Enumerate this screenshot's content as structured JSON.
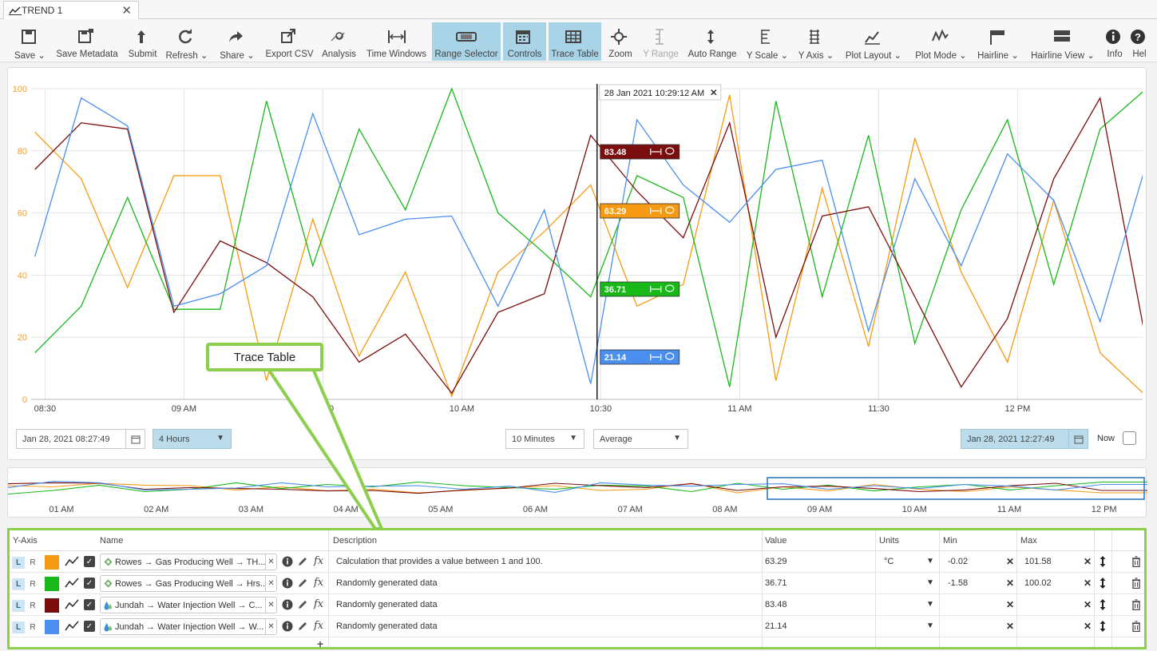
{
  "tab": {
    "title": "TREND 1",
    "close": "✕"
  },
  "toolbar": [
    {
      "id": "save",
      "label": "Save",
      "dropdown": true,
      "icon": "save-icon"
    },
    {
      "id": "save-metadata",
      "label": "Save Metadata",
      "icon": "save-metadata-icon"
    },
    {
      "id": "submit",
      "label": "Submit",
      "icon": "submit-icon"
    },
    {
      "id": "refresh",
      "label": "Refresh",
      "dropdown": true,
      "icon": "refresh-icon"
    },
    {
      "id": "share",
      "label": "Share",
      "dropdown": true,
      "icon": "share-icon"
    },
    {
      "id": "export-csv",
      "label": "Export CSV",
      "icon": "export-icon"
    },
    {
      "id": "analysis",
      "label": "Analysis",
      "icon": "analysis-icon"
    },
    {
      "id": "time-windows",
      "label": "Time Windows",
      "icon": "time-windows-icon"
    },
    {
      "id": "range-selector",
      "label": "Range Selector",
      "active": true,
      "icon": "range-selector-icon"
    },
    {
      "id": "controls",
      "label": "Controls",
      "active": true,
      "icon": "calendar-icon"
    },
    {
      "id": "trace-table",
      "label": "Trace Table",
      "active": true,
      "icon": "table-icon"
    },
    {
      "id": "zoom",
      "label": "Zoom",
      "icon": "zoom-icon"
    },
    {
      "id": "y-range",
      "label": "Y Range",
      "disabled": true,
      "icon": "y-range-icon"
    },
    {
      "id": "auto-range",
      "label": "Auto Range",
      "icon": "auto-range-icon"
    },
    {
      "id": "y-scale",
      "label": "Y Scale",
      "dropdown": true,
      "icon": "y-scale-icon"
    },
    {
      "id": "y-axis",
      "label": "Y Axis",
      "dropdown": true,
      "icon": "y-axis-icon"
    },
    {
      "id": "plot-layout",
      "label": "Plot Layout",
      "dropdown": true,
      "icon": "plot-layout-icon"
    },
    {
      "id": "plot-mode",
      "label": "Plot Mode",
      "dropdown": true,
      "icon": "plot-mode-icon"
    },
    {
      "id": "hairline",
      "label": "Hairline",
      "dropdown": true,
      "icon": "hairline-icon"
    },
    {
      "id": "hairline-view",
      "label": "Hairline View",
      "dropdown": true,
      "icon": "hairline-view-icon"
    },
    {
      "id": "info",
      "label": "Info",
      "icon": "info-icon"
    },
    {
      "id": "help",
      "label": "Hel",
      "icon": "help-icon"
    }
  ],
  "colors": {
    "orange": "#f59a12",
    "green": "#18b818",
    "maroon": "#7a0d0d",
    "blue": "#4a8ef0",
    "active": "#a9d3e6",
    "callout_border": "#8ccf4d"
  },
  "chart_data": {
    "type": "line",
    "ylim": [
      0,
      100
    ],
    "yticks": [
      "0",
      "20",
      "40",
      "60",
      "80",
      "100"
    ],
    "xticks": [
      "08:30",
      "09 AM",
      "09:30",
      "10 AM",
      "10:30",
      "11 AM",
      "11:30",
      "12 PM"
    ],
    "x_range": [
      "2021-01-28 08:27:49",
      "2021-01-28 12:27:49"
    ],
    "hairline_time": "28 Jan 2021 10:29:12 AM",
    "hairline_close": "✕",
    "x": [
      "08:27:49",
      "08:37:49",
      "08:47:49",
      "08:57:49",
      "09:07:49",
      "09:17:49",
      "09:27:49",
      "09:37:49",
      "09:47:49",
      "09:57:49",
      "10:07:49",
      "10:17:49",
      "10:27:49",
      "10:37:49",
      "10:47:49",
      "10:57:49",
      "11:07:49",
      "11:17:49",
      "11:27:49",
      "11:37:49",
      "11:47:49",
      "11:57:49",
      "12:07:49",
      "12:17:49",
      "12:27:49",
      "12:37:49"
    ],
    "series": [
      {
        "name": "Rowes → Gas Producing Well → TH...",
        "color": "#f59a12",
        "hair_value": "63.29",
        "values": [
          86,
          71,
          36,
          72,
          72,
          6,
          58,
          14,
          41,
          1,
          41,
          54,
          69,
          30,
          37,
          98,
          6,
          68,
          17,
          84,
          41,
          12,
          64,
          15,
          1,
          1
        ]
      },
      {
        "name": "Rowes → Gas Producing Well → Hrs...",
        "color": "#18b818",
        "hair_value": "36.71",
        "values": [
          15,
          30,
          65,
          29,
          29,
          96,
          43,
          87,
          61,
          100,
          60,
          47,
          33,
          72,
          65,
          4,
          96,
          33,
          85,
          18,
          61,
          90,
          37,
          87,
          100,
          100
        ]
      },
      {
        "name": "Jundah → Water Injection Well → C...",
        "color": "#7a0d0d",
        "hair_value": "83.48",
        "values": [
          74,
          89,
          87,
          28,
          51,
          44,
          33,
          12,
          21,
          2,
          28,
          34,
          85,
          67,
          52,
          89,
          20,
          59,
          62,
          33,
          4,
          26,
          71,
          97,
          18,
          18
        ]
      },
      {
        "name": "Jundah → Water Injection Well → W...",
        "color": "#4a8ef0",
        "hair_value": "21.14",
        "values": [
          46,
          97,
          88,
          30,
          34,
          43,
          92,
          53,
          58,
          59,
          30,
          61,
          5,
          90,
          69,
          57,
          74,
          77,
          22,
          71,
          43,
          79,
          64,
          25,
          76,
          76
        ]
      }
    ]
  },
  "overview_ticks": [
    "01 AM",
    "02 AM",
    "03 AM",
    "04 AM",
    "05 AM",
    "06 AM",
    "07 AM",
    "08 AM",
    "09 AM",
    "10 AM",
    "11 AM",
    "12 PM"
  ],
  "controls": {
    "start": "Jan 28, 2021 08:27:49",
    "span": "4 Hours",
    "interval": "10 Minutes",
    "aggregate": "Average",
    "end": "Jan 28, 2021 12:27:49",
    "now_label": "Now"
  },
  "callout": {
    "text": "Trace Table"
  },
  "table": {
    "headers": {
      "yaxis": "Y-Axis",
      "name": "Name",
      "description": "Description",
      "value": "Value",
      "units": "Units",
      "min": "Min",
      "max": "Max"
    },
    "rows": [
      {
        "l": "L",
        "r": "R",
        "color": "#f59a12",
        "name": "Rowes → Gas Producing Well → TH...",
        "description": "Calculation that provides a value between 1 and 100.",
        "value": "63.29",
        "units": "°C",
        "min": "-0.02",
        "max": "101.58",
        "asset": "gas"
      },
      {
        "l": "L",
        "r": "R",
        "color": "#18b818",
        "name": "Rowes → Gas Producing Well → Hrs...",
        "description": "Randomly generated data",
        "value": "36.71",
        "units": "",
        "min": "-1.58",
        "max": "100.02",
        "asset": "gas"
      },
      {
        "l": "L",
        "r": "R",
        "color": "#7a0d0d",
        "name": "Jundah → Water Injection Well → C...",
        "description": "Randomly generated data",
        "value": "83.48",
        "units": "",
        "min": "",
        "max": "",
        "asset": "water"
      },
      {
        "l": "L",
        "r": "R",
        "color": "#4a8ef0",
        "name": "Jundah → Water Injection Well → W...",
        "description": "Randomly generated data",
        "value": "21.14",
        "units": "",
        "min": "",
        "max": "",
        "asset": "water"
      }
    ],
    "add": "+"
  }
}
